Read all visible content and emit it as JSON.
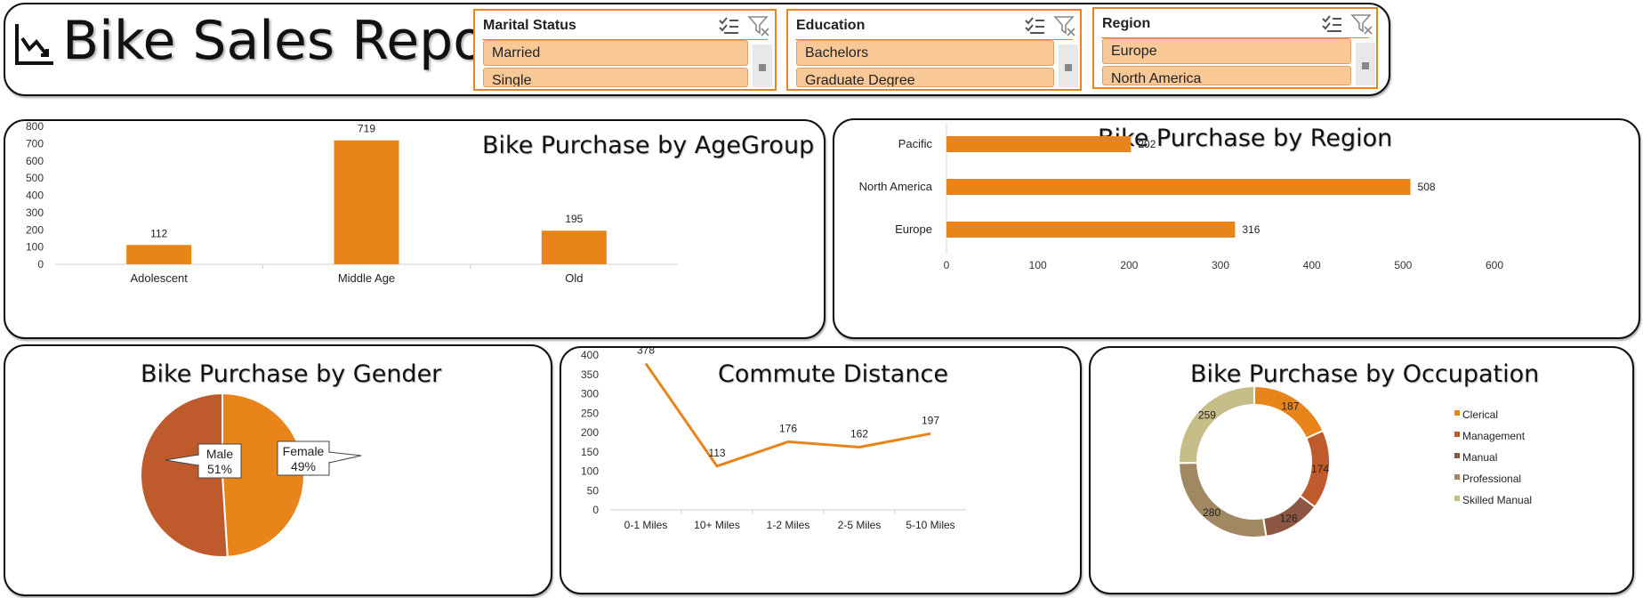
{
  "header": {
    "title": "Bike Sales Report",
    "icon": "line-chart-icon"
  },
  "slicers": [
    {
      "title": "Marital Status",
      "items": [
        "Married",
        "Single"
      ]
    },
    {
      "title": "Education",
      "items": [
        "Bachelors",
        "Graduate Degree"
      ]
    },
    {
      "title": "Region",
      "items": [
        "Europe",
        "North America"
      ]
    }
  ],
  "colors": {
    "accent": "#e8841a",
    "slicer_item": "#f8c896",
    "gender_male": "#bf5a2c",
    "gender_female": "#e8841a"
  },
  "chart_data": [
    {
      "id": "age",
      "type": "bar",
      "title": "Bike Purchase by AgeGroup",
      "categories": [
        "Adolescent",
        "Middle Age",
        "Old"
      ],
      "values": [
        112,
        719,
        195
      ],
      "ylim": [
        0,
        800
      ],
      "yticks": [
        0,
        100,
        200,
        300,
        400,
        500,
        600,
        700,
        800
      ],
      "color": "#e8841a"
    },
    {
      "id": "region",
      "type": "bar",
      "orientation": "horizontal",
      "title": "Bike Purchase by Region",
      "categories": [
        "Pacific",
        "North America",
        "Europe"
      ],
      "values": [
        202,
        508,
        316
      ],
      "xlim": [
        0,
        600
      ],
      "xticks": [
        0,
        100,
        200,
        300,
        400,
        500,
        600
      ],
      "color": "#e8841a"
    },
    {
      "id": "gender",
      "type": "pie",
      "title": "Bike Purchase by Gender",
      "labels": [
        "Female",
        "Male"
      ],
      "values": [
        49,
        51
      ],
      "label_texts": [
        "49%",
        "51%"
      ],
      "colors": [
        "#e8841a",
        "#bf5a2c"
      ]
    },
    {
      "id": "commute",
      "type": "line",
      "title": "Commute Distance",
      "categories": [
        "0-1 Miles",
        "10+ Miles",
        "1-2 Miles",
        "2-5 Miles",
        "5-10 Miles"
      ],
      "values": [
        378,
        113,
        176,
        162,
        197
      ],
      "ylim": [
        0,
        400
      ],
      "yticks": [
        0,
        50,
        100,
        150,
        200,
        250,
        300,
        350,
        400
      ],
      "color": "#e8841a"
    },
    {
      "id": "occupation",
      "type": "pie",
      "style": "donut",
      "title": "Bike Purchase by Occupation",
      "labels": [
        "Clerical",
        "Management",
        "Manual",
        "Professional",
        "Skilled Manual"
      ],
      "values": [
        187,
        174,
        126,
        280,
        259
      ],
      "colors": [
        "#e8841a",
        "#bf5a2c",
        "#8c5642",
        "#a08862",
        "#c7bd88"
      ],
      "legend": "right"
    }
  ]
}
